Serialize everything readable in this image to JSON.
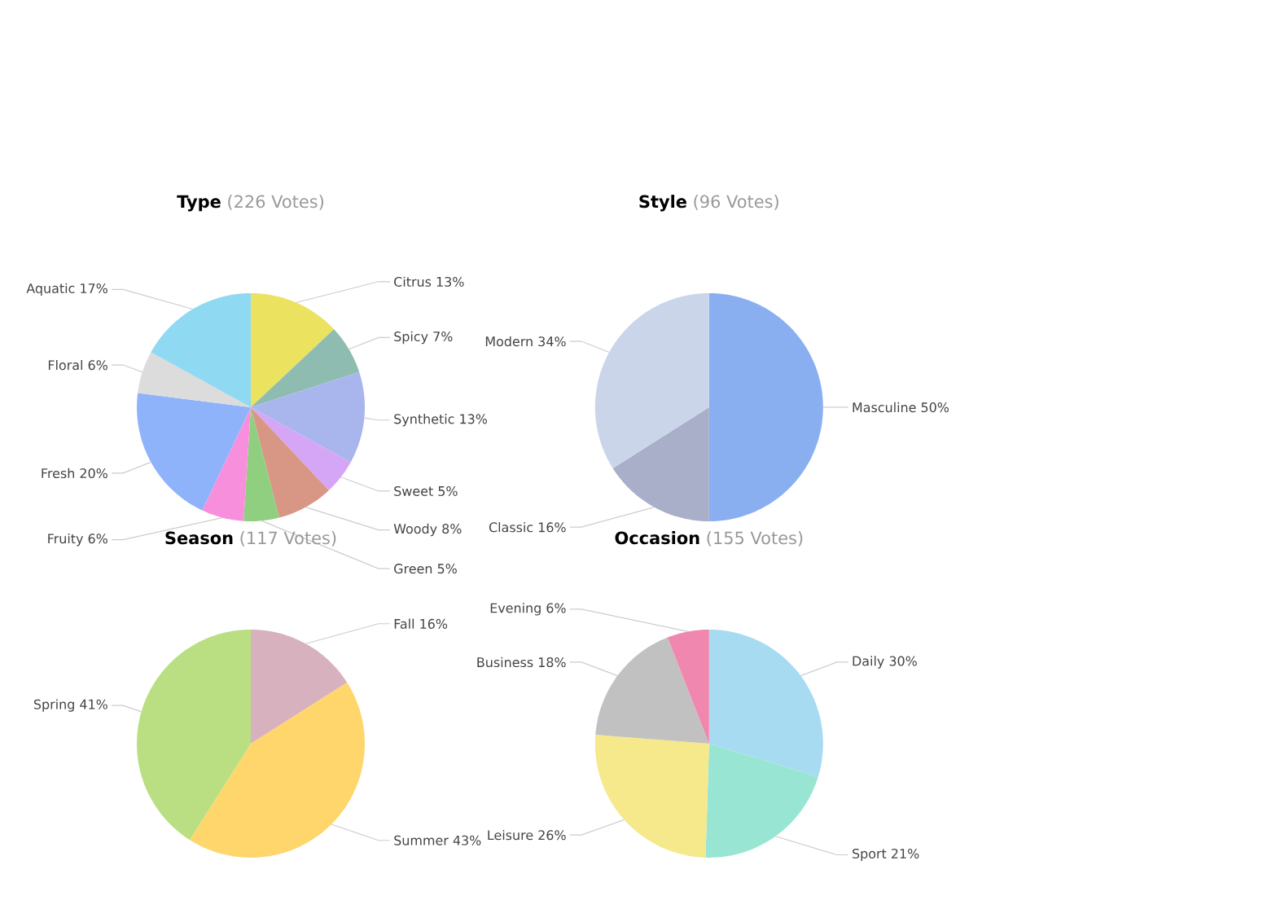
{
  "chart_data": [
    {
      "type": "pie",
      "title": "Type",
      "subtitle": "(226 Votes)",
      "categories": [
        "Citrus",
        "Spicy",
        "Synthetic",
        "Sweet",
        "Woody",
        "Green",
        "Fruity",
        "Fresh",
        "Floral",
        "Aquatic"
      ],
      "values": [
        13,
        7,
        13,
        5,
        8,
        5,
        6,
        20,
        6,
        17
      ],
      "value_labels": [
        "13%",
        "7%",
        "13%",
        "5%",
        "8%",
        "5%",
        "6%",
        "20%",
        "6%",
        "17%"
      ],
      "colors": [
        "#ebe25f",
        "#8fbcb0",
        "#a9b6ee",
        "#d5a6f5",
        "#d89784",
        "#8fcf7f",
        "#f88fdc",
        "#8fb3fb",
        "#dcdcdc",
        "#8fd9f3"
      ]
    },
    {
      "type": "pie",
      "title": "Style",
      "subtitle": "(96 Votes)",
      "categories": [
        "Masculine",
        "Classic",
        "Modern"
      ],
      "values": [
        50,
        16,
        34
      ],
      "value_labels": [
        "50%",
        "16%",
        "34%"
      ],
      "colors": [
        "#8aaff0",
        "#a9aec9",
        "#cbd5ea"
      ]
    },
    {
      "type": "pie",
      "title": "Season",
      "subtitle": "(117 Votes)",
      "categories": [
        "Fall",
        "Summer",
        "Spring"
      ],
      "values": [
        16,
        43,
        41
      ],
      "value_labels": [
        "16%",
        "43%",
        "41%"
      ],
      "colors": [
        "#d8b1be",
        "#ffd66b",
        "#badf82"
      ]
    },
    {
      "type": "pie",
      "title": "Occasion",
      "subtitle": "(155 Votes)",
      "categories": [
        "Daily",
        "Sport",
        "Leisure",
        "Business",
        "Evening"
      ],
      "values": [
        30,
        21,
        26,
        18,
        6
      ],
      "value_labels": [
        "30%",
        "21%",
        "26%",
        "18%",
        "6%"
      ],
      "colors": [
        "#a7dbf2",
        "#99e5d3",
        "#f5e98b",
        "#c1c1c1",
        "#f087ae"
      ]
    }
  ]
}
